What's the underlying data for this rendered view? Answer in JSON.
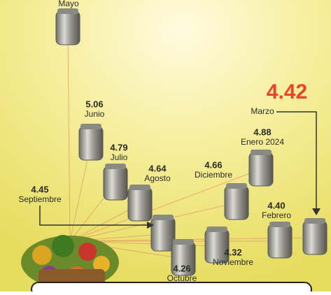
{
  "items": [
    {
      "label": "Mayo"
    },
    {
      "value": "5.06",
      "label": "Junio"
    },
    {
      "value": "4.79",
      "label": "Julio"
    },
    {
      "value": "4.64",
      "label": "Agosto"
    },
    {
      "value": "4.45",
      "label": "Septiembre"
    },
    {
      "value": "4.26",
      "label": "Octubre"
    },
    {
      "value": "4.32",
      "label": "Noviembre"
    },
    {
      "value": "4.66",
      "label": "Diciembre"
    },
    {
      "value": "4.88",
      "label": "Enero 2024"
    },
    {
      "value": "4.40",
      "label": "Febrero"
    },
    {
      "value": "4.42",
      "label": "Marzo"
    }
  ]
}
